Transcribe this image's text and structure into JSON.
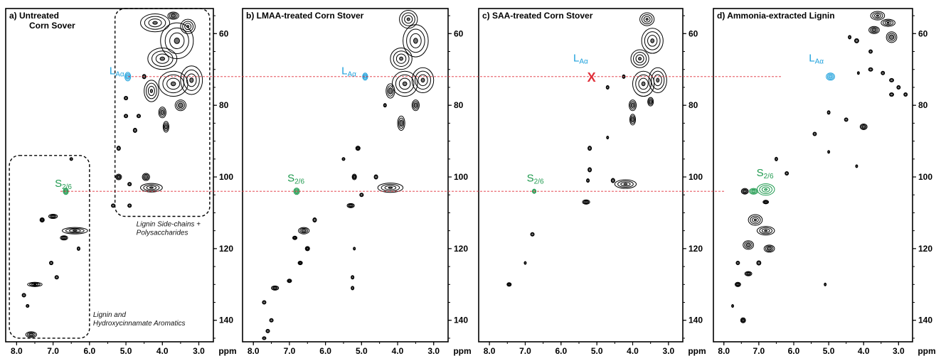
{
  "colors": {
    "axis": "#000000",
    "contour": "#000000",
    "lignin_la": "#1ea1dc",
    "syringyl": "#1f9a4f",
    "guide": "#e0303a",
    "missing_mark": "#e0303a"
  },
  "chart_data": [
    {
      "type": "scatter",
      "title_line1": "a) Untreated",
      "title_line2": "Corn Sover",
      "xlabel": "ppm",
      "xlim": [
        8.3,
        2.6
      ],
      "ylim": [
        53,
        146
      ],
      "x_ticks": [
        8.0,
        7.0,
        6.0,
        5.0,
        4.0,
        3.0
      ],
      "y_ticks": [
        60,
        80,
        100,
        120,
        140
      ],
      "x_tick_labels": [
        "8.0",
        "7.0",
        "6.0",
        "5.0",
        "4.0",
        "3.0"
      ],
      "y_tick_labels": [
        "60",
        "80",
        "100",
        "120",
        "140"
      ],
      "regions": [
        {
          "label_line1": "Lignin Side-chains +",
          "label_line2": "Polysaccharides",
          "x_range": [
            5.3,
            2.7
          ],
          "y_range": [
            53,
            111
          ]
        },
        {
          "label_line1": "Lignin and",
          "label_line2": "Hydroxycinnamate Aromatics",
          "x_range": [
            8.2,
            6.0
          ],
          "y_range": [
            94,
            145
          ]
        }
      ],
      "labels": [
        {
          "text": "L",
          "sub": "Aα",
          "x": 5.1,
          "y": 72.5,
          "color": "lignin_la"
        },
        {
          "text": "S",
          "sub": "2/6",
          "x": 6.6,
          "y": 104,
          "color": "syringyl"
        }
      ],
      "peaks": [
        {
          "x": 4.95,
          "y": 72,
          "rx": 0.08,
          "ry": 1.2,
          "color": "lignin_la"
        },
        {
          "x": 6.65,
          "y": 104,
          "rx": 0.07,
          "ry": 0.9,
          "color": "syringyl"
        },
        {
          "x": 4.2,
          "y": 57,
          "rx": 0.4,
          "ry": 2.5
        },
        {
          "x": 3.7,
          "y": 55,
          "rx": 0.15,
          "ry": 1.0
        },
        {
          "x": 3.6,
          "y": 62,
          "rx": 0.45,
          "ry": 5.0
        },
        {
          "x": 3.3,
          "y": 58,
          "rx": 0.2,
          "ry": 2.0
        },
        {
          "x": 4.0,
          "y": 67,
          "rx": 0.4,
          "ry": 3.0
        },
        {
          "x": 3.2,
          "y": 73,
          "rx": 0.3,
          "ry": 4.0
        },
        {
          "x": 3.7,
          "y": 74,
          "rx": 0.4,
          "ry": 3.5
        },
        {
          "x": 4.3,
          "y": 76,
          "rx": 0.2,
          "ry": 3.0
        },
        {
          "x": 3.5,
          "y": 80,
          "rx": 0.15,
          "ry": 1.5
        },
        {
          "x": 4.0,
          "y": 82,
          "rx": 0.1,
          "ry": 1.5
        },
        {
          "x": 3.9,
          "y": 86,
          "rx": 0.08,
          "ry": 1.5
        },
        {
          "x": 4.5,
          "y": 72,
          "rx": 0.05,
          "ry": 0.6
        },
        {
          "x": 5.0,
          "y": 78,
          "rx": 0.05,
          "ry": 0.5
        },
        {
          "x": 5.0,
          "y": 83,
          "rx": 0.05,
          "ry": 0.5
        },
        {
          "x": 4.65,
          "y": 83,
          "rx": 0.05,
          "ry": 0.5
        },
        {
          "x": 4.75,
          "y": 87,
          "rx": 0.05,
          "ry": 0.6
        },
        {
          "x": 5.2,
          "y": 92,
          "rx": 0.05,
          "ry": 0.6
        },
        {
          "x": 5.2,
          "y": 100,
          "rx": 0.08,
          "ry": 0.8
        },
        {
          "x": 4.45,
          "y": 100,
          "rx": 0.1,
          "ry": 1.0
        },
        {
          "x": 4.3,
          "y": 103,
          "rx": 0.3,
          "ry": 1.2
        },
        {
          "x": 4.9,
          "y": 102,
          "rx": 0.05,
          "ry": 0.5
        },
        {
          "x": 4.9,
          "y": 108,
          "rx": 0.05,
          "ry": 0.5
        },
        {
          "x": 5.35,
          "y": 108,
          "rx": 0.05,
          "ry": 0.5
        },
        {
          "x": 6.5,
          "y": 95,
          "rx": 0.04,
          "ry": 0.4
        },
        {
          "x": 7.0,
          "y": 111,
          "rx": 0.12,
          "ry": 0.6
        },
        {
          "x": 7.3,
          "y": 112,
          "rx": 0.06,
          "ry": 0.6
        },
        {
          "x": 6.4,
          "y": 115,
          "rx": 0.35,
          "ry": 0.9
        },
        {
          "x": 6.7,
          "y": 117,
          "rx": 0.1,
          "ry": 0.6
        },
        {
          "x": 6.3,
          "y": 120,
          "rx": 0.04,
          "ry": 0.5
        },
        {
          "x": 7.05,
          "y": 124,
          "rx": 0.05,
          "ry": 0.5
        },
        {
          "x": 6.9,
          "y": 128,
          "rx": 0.05,
          "ry": 0.5
        },
        {
          "x": 7.5,
          "y": 130,
          "rx": 0.2,
          "ry": 0.6
        },
        {
          "x": 7.8,
          "y": 133,
          "rx": 0.05,
          "ry": 0.5
        },
        {
          "x": 7.7,
          "y": 136,
          "rx": 0.04,
          "ry": 0.4
        },
        {
          "x": 7.6,
          "y": 144,
          "rx": 0.15,
          "ry": 0.8
        }
      ]
    },
    {
      "type": "scatter",
      "title_line1": "b) LMAA-treated Corn Stover",
      "xlabel": "ppm",
      "xlim": [
        8.3,
        2.6
      ],
      "ylim": [
        53,
        146
      ],
      "x_ticks": [
        8.0,
        7.0,
        6.0,
        5.0,
        4.0,
        3.0
      ],
      "y_ticks": [
        60,
        80,
        100,
        120,
        140
      ],
      "x_tick_labels": [
        "8.0",
        "7.0",
        "6.0",
        "5.0",
        "4.0",
        "3.0"
      ],
      "y_tick_labels": [
        "60",
        "80",
        "100",
        "120",
        "140"
      ],
      "labels": [
        {
          "text": "L",
          "sub": "Aα",
          "x": 5.2,
          "y": 72.5,
          "color": "lignin_la"
        },
        {
          "text": "S",
          "sub": "2/6",
          "x": 6.7,
          "y": 102.5,
          "color": "syringyl"
        }
      ],
      "peaks": [
        {
          "x": 4.9,
          "y": 72,
          "rx": 0.07,
          "ry": 1.0,
          "color": "lignin_la"
        },
        {
          "x": 6.8,
          "y": 104,
          "rx": 0.08,
          "ry": 0.9,
          "color": "syringyl"
        },
        {
          "x": 3.7,
          "y": 56,
          "rx": 0.25,
          "ry": 2.5
        },
        {
          "x": 3.5,
          "y": 62,
          "rx": 0.35,
          "ry": 4.5
        },
        {
          "x": 3.9,
          "y": 67,
          "rx": 0.3,
          "ry": 3.0
        },
        {
          "x": 3.3,
          "y": 73,
          "rx": 0.3,
          "ry": 3.5
        },
        {
          "x": 3.8,
          "y": 74,
          "rx": 0.35,
          "ry": 3.5
        },
        {
          "x": 4.2,
          "y": 76,
          "rx": 0.12,
          "ry": 2.0
        },
        {
          "x": 3.5,
          "y": 80,
          "rx": 0.1,
          "ry": 1.5
        },
        {
          "x": 3.9,
          "y": 85,
          "rx": 0.1,
          "ry": 2.0
        },
        {
          "x": 4.35,
          "y": 80,
          "rx": 0.04,
          "ry": 0.5
        },
        {
          "x": 5.1,
          "y": 92,
          "rx": 0.06,
          "ry": 0.6
        },
        {
          "x": 5.5,
          "y": 95,
          "rx": 0.04,
          "ry": 0.4
        },
        {
          "x": 5.2,
          "y": 100,
          "rx": 0.06,
          "ry": 0.8
        },
        {
          "x": 4.6,
          "y": 100,
          "rx": 0.05,
          "ry": 0.6
        },
        {
          "x": 4.2,
          "y": 103,
          "rx": 0.35,
          "ry": 1.3
        },
        {
          "x": 5.0,
          "y": 105,
          "rx": 0.05,
          "ry": 0.5
        },
        {
          "x": 5.3,
          "y": 108,
          "rx": 0.1,
          "ry": 0.6
        },
        {
          "x": 6.3,
          "y": 112,
          "rx": 0.05,
          "ry": 0.6
        },
        {
          "x": 6.6,
          "y": 115,
          "rx": 0.15,
          "ry": 0.9
        },
        {
          "x": 6.85,
          "y": 117,
          "rx": 0.06,
          "ry": 0.5
        },
        {
          "x": 6.5,
          "y": 120,
          "rx": 0.06,
          "ry": 0.6
        },
        {
          "x": 6.7,
          "y": 124,
          "rx": 0.06,
          "ry": 0.5
        },
        {
          "x": 5.2,
          "y": 120,
          "rx": 0.03,
          "ry": 0.4
        },
        {
          "x": 5.25,
          "y": 128,
          "rx": 0.04,
          "ry": 0.5
        },
        {
          "x": 5.25,
          "y": 131,
          "rx": 0.04,
          "ry": 0.5
        },
        {
          "x": 7.0,
          "y": 129,
          "rx": 0.06,
          "ry": 0.5
        },
        {
          "x": 7.4,
          "y": 131,
          "rx": 0.1,
          "ry": 0.6
        },
        {
          "x": 7.7,
          "y": 135,
          "rx": 0.05,
          "ry": 0.5
        },
        {
          "x": 7.5,
          "y": 140,
          "rx": 0.05,
          "ry": 0.5
        },
        {
          "x": 7.6,
          "y": 143,
          "rx": 0.05,
          "ry": 0.5
        },
        {
          "x": 7.7,
          "y": 145,
          "rx": 0.05,
          "ry": 0.4
        }
      ]
    },
    {
      "type": "scatter",
      "title_line1": "c) SAA-treated Corn Stover",
      "xlabel": "ppm",
      "xlim": [
        8.3,
        2.6
      ],
      "ylim": [
        53,
        146
      ],
      "x_ticks": [
        8.0,
        7.0,
        6.0,
        5.0,
        4.0,
        3.0
      ],
      "y_ticks": [
        60,
        80,
        100,
        120,
        140
      ],
      "x_tick_labels": [
        "8.0",
        "7.0",
        "6.0",
        "5.0",
        "4.0",
        "3.0"
      ],
      "y_tick_labels": [
        "60",
        "80",
        "100",
        "120",
        "140"
      ],
      "missing": {
        "text": "X",
        "x": 5.15,
        "y": 72
      },
      "labels": [
        {
          "text": "L",
          "sub": "Aα",
          "x": 5.3,
          "y": 69.0,
          "color": "lignin_la"
        },
        {
          "text": "S",
          "sub": "2/6",
          "x": 6.6,
          "y": 102.5,
          "color": "syringyl"
        }
      ],
      "peaks": [
        {
          "x": 6.75,
          "y": 104,
          "rx": 0.05,
          "ry": 0.6,
          "color": "syringyl"
        },
        {
          "x": 3.6,
          "y": 56,
          "rx": 0.2,
          "ry": 1.8
        },
        {
          "x": 3.45,
          "y": 62,
          "rx": 0.3,
          "ry": 3.5
        },
        {
          "x": 3.8,
          "y": 67,
          "rx": 0.25,
          "ry": 2.5
        },
        {
          "x": 3.3,
          "y": 73,
          "rx": 0.25,
          "ry": 3.5
        },
        {
          "x": 3.7,
          "y": 74,
          "rx": 0.3,
          "ry": 3.5
        },
        {
          "x": 4.0,
          "y": 80,
          "rx": 0.1,
          "ry": 1.5
        },
        {
          "x": 3.5,
          "y": 79,
          "rx": 0.08,
          "ry": 1.2
        },
        {
          "x": 4.0,
          "y": 84,
          "rx": 0.08,
          "ry": 1.5
        },
        {
          "x": 4.7,
          "y": 75,
          "rx": 0.04,
          "ry": 0.5
        },
        {
          "x": 4.25,
          "y": 72,
          "rx": 0.04,
          "ry": 0.5
        },
        {
          "x": 4.7,
          "y": 89,
          "rx": 0.03,
          "ry": 0.4
        },
        {
          "x": 5.2,
          "y": 92,
          "rx": 0.05,
          "ry": 0.6
        },
        {
          "x": 5.2,
          "y": 98,
          "rx": 0.05,
          "ry": 0.6
        },
        {
          "x": 5.25,
          "y": 101,
          "rx": 0.04,
          "ry": 0.5
        },
        {
          "x": 4.2,
          "y": 102,
          "rx": 0.3,
          "ry": 1.2
        },
        {
          "x": 4.55,
          "y": 101,
          "rx": 0.05,
          "ry": 0.6
        },
        {
          "x": 5.3,
          "y": 107,
          "rx": 0.1,
          "ry": 0.6
        },
        {
          "x": 6.8,
          "y": 116,
          "rx": 0.05,
          "ry": 0.5
        },
        {
          "x": 7.45,
          "y": 130,
          "rx": 0.06,
          "ry": 0.5
        },
        {
          "x": 7.0,
          "y": 124,
          "rx": 0.03,
          "ry": 0.4
        }
      ]
    },
    {
      "type": "scatter",
      "title_line1": "d) Ammonia-extracted Lignin",
      "xlabel": "ppm",
      "xlim": [
        8.3,
        2.6
      ],
      "ylim": [
        53,
        146
      ],
      "x_ticks": [
        8.0,
        7.0,
        6.0,
        5.0,
        4.0,
        3.0
      ],
      "y_ticks": [
        60,
        80,
        100,
        120,
        140
      ],
      "x_tick_labels": [
        "8.0",
        "7.0",
        "6.0",
        "5.0",
        "4.0",
        "3.0"
      ],
      "y_tick_labels": [
        "60",
        "80",
        "100",
        "120",
        "140"
      ],
      "labels": [
        {
          "text": "L",
          "sub": "Aα",
          "x": 5.2,
          "y": 69.0,
          "color": "lignin_la"
        },
        {
          "text": "S",
          "sub": "2/6",
          "x": 6.7,
          "y": 101.0,
          "color": "syringyl"
        }
      ],
      "peaks": [
        {
          "x": 4.95,
          "y": 72,
          "rx": 0.12,
          "ry": 1.0,
          "color": "lignin_la"
        },
        {
          "x": 6.8,
          "y": 103.5,
          "rx": 0.25,
          "ry": 1.6,
          "color": "syringyl"
        },
        {
          "x": 7.15,
          "y": 104,
          "rx": 0.12,
          "ry": 0.8,
          "color": "syringyl"
        },
        {
          "x": 3.6,
          "y": 55,
          "rx": 0.2,
          "ry": 1.2
        },
        {
          "x": 3.3,
          "y": 57,
          "rx": 0.2,
          "ry": 1.0
        },
        {
          "x": 3.2,
          "y": 61,
          "rx": 0.15,
          "ry": 1.5
        },
        {
          "x": 3.7,
          "y": 59,
          "rx": 0.15,
          "ry": 1.0
        },
        {
          "x": 4.2,
          "y": 62,
          "rx": 0.06,
          "ry": 0.6
        },
        {
          "x": 4.4,
          "y": 61,
          "rx": 0.04,
          "ry": 0.5
        },
        {
          "x": 3.8,
          "y": 65,
          "rx": 0.05,
          "ry": 0.5
        },
        {
          "x": 3.8,
          "y": 70,
          "rx": 0.06,
          "ry": 0.5
        },
        {
          "x": 3.45,
          "y": 71,
          "rx": 0.05,
          "ry": 0.5
        },
        {
          "x": 3.2,
          "y": 73,
          "rx": 0.06,
          "ry": 0.5
        },
        {
          "x": 3.0,
          "y": 75,
          "rx": 0.05,
          "ry": 0.5
        },
        {
          "x": 3.2,
          "y": 77,
          "rx": 0.06,
          "ry": 0.5
        },
        {
          "x": 2.8,
          "y": 77,
          "rx": 0.05,
          "ry": 0.5
        },
        {
          "x": 4.15,
          "y": 71,
          "rx": 0.03,
          "ry": 0.4
        },
        {
          "x": 4.0,
          "y": 86,
          "rx": 0.1,
          "ry": 0.8
        },
        {
          "x": 4.5,
          "y": 84,
          "rx": 0.05,
          "ry": 0.5
        },
        {
          "x": 5.0,
          "y": 82,
          "rx": 0.04,
          "ry": 0.5
        },
        {
          "x": 5.4,
          "y": 88,
          "rx": 0.05,
          "ry": 0.5
        },
        {
          "x": 5.0,
          "y": 93,
          "rx": 0.03,
          "ry": 0.4
        },
        {
          "x": 4.2,
          "y": 97,
          "rx": 0.03,
          "ry": 0.4
        },
        {
          "x": 6.2,
          "y": 99,
          "rx": 0.05,
          "ry": 0.5
        },
        {
          "x": 6.5,
          "y": 95,
          "rx": 0.04,
          "ry": 0.5
        },
        {
          "x": 7.4,
          "y": 104,
          "rx": 0.1,
          "ry": 0.8
        },
        {
          "x": 6.8,
          "y": 107,
          "rx": 0.08,
          "ry": 0.5
        },
        {
          "x": 7.1,
          "y": 112,
          "rx": 0.2,
          "ry": 1.5
        },
        {
          "x": 6.8,
          "y": 115,
          "rx": 0.25,
          "ry": 1.2
        },
        {
          "x": 7.3,
          "y": 119,
          "rx": 0.15,
          "ry": 1.2
        },
        {
          "x": 6.7,
          "y": 120,
          "rx": 0.15,
          "ry": 1.0
        },
        {
          "x": 7.0,
          "y": 124,
          "rx": 0.06,
          "ry": 0.6
        },
        {
          "x": 7.6,
          "y": 124,
          "rx": 0.05,
          "ry": 0.5
        },
        {
          "x": 7.3,
          "y": 127,
          "rx": 0.1,
          "ry": 0.6
        },
        {
          "x": 7.6,
          "y": 130,
          "rx": 0.08,
          "ry": 0.6
        },
        {
          "x": 5.1,
          "y": 130,
          "rx": 0.03,
          "ry": 0.4
        },
        {
          "x": 7.45,
          "y": 140,
          "rx": 0.07,
          "ry": 0.7
        },
        {
          "x": 7.75,
          "y": 136,
          "rx": 0.03,
          "ry": 0.4
        }
      ]
    }
  ]
}
